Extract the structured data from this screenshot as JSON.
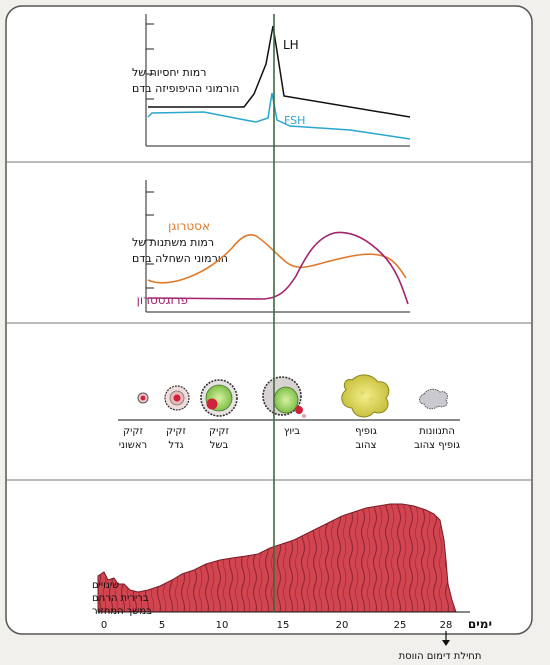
{
  "hormone_panel": {
    "label_lines": [
      "רמות יחסיות של",
      "הורמוני ההיפופיזה בדם"
    ],
    "lh_label": "LH",
    "fsh_label": "FSH",
    "colors": {
      "lh": "#111111",
      "fsh": "#2aa6cf"
    }
  },
  "ovarian_hormone_panel": {
    "label_lines": [
      "רמות משתנות של",
      "הורמוני השחלה בדם"
    ],
    "estrogen_label": "אסטרוגן",
    "progesterone_label": "פרוגסטרון",
    "colors": {
      "estrogen": "#e07a2c",
      "progesterone": "#a3246e"
    }
  },
  "follicle_panel": {
    "stages": [
      {
        "lines": [
          "זקיק",
          "ראשוני"
        ]
      },
      {
        "lines": [
          "זקיק",
          "גדל"
        ]
      },
      {
        "lines": [
          "זקיק",
          "בשל"
        ]
      },
      {
        "lines": [
          "ביוץ"
        ]
      },
      {
        "lines": [
          "גופיף",
          "צהוב"
        ]
      },
      {
        "lines": [
          "התנוונות",
          "גופיף צהוב"
        ]
      }
    ]
  },
  "uterus_panel": {
    "label_lines": [
      "שינויים",
      "ברירית הרחם",
      "במשך המחזור"
    ],
    "colors": {
      "lining": "#d0454f"
    }
  },
  "axis": {
    "ticks": [
      "0",
      "5",
      "10",
      "15",
      "20",
      "25",
      "28"
    ],
    "unit_label": "ימים",
    "menstruation_note": "תחילת דימום הווסת"
  },
  "colors": {
    "ovulation_line": "#3d6b3c",
    "frame": "#555555"
  }
}
